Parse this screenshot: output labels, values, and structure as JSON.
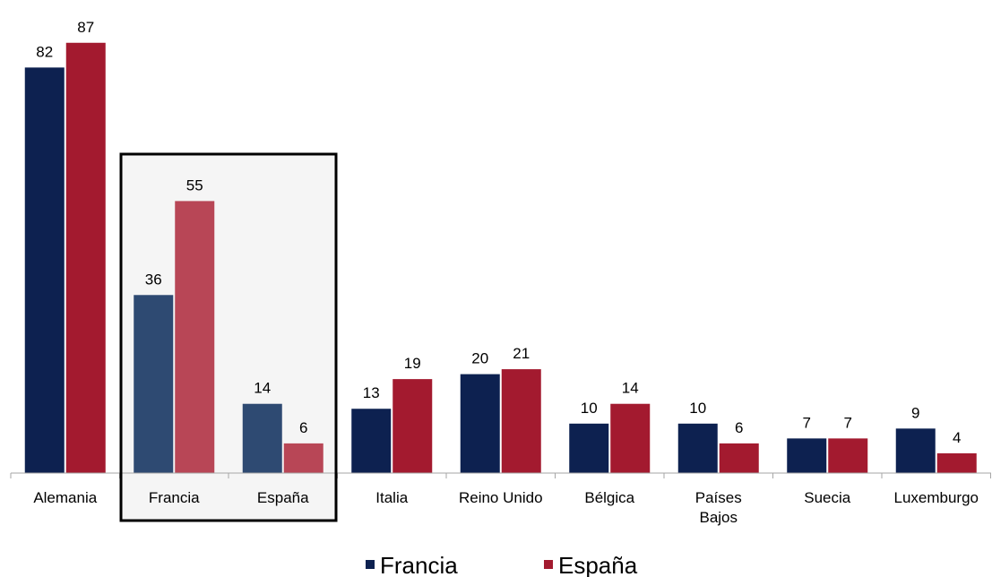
{
  "chart_data": {
    "type": "bar",
    "title": "",
    "xlabel": "",
    "ylabel": "",
    "ylim": [
      0,
      95
    ],
    "grid": false,
    "legend_position": "bottom-center",
    "categories": [
      "Alemania",
      "Francia",
      "España",
      "Italia",
      "Reino Unido",
      "Bélgica",
      "Países Bajos",
      "Suecia",
      "Luxemburgo"
    ],
    "category_lines": [
      [
        "Alemania"
      ],
      [
        "Francia"
      ],
      [
        "España"
      ],
      [
        "Italia"
      ],
      [
        "Reino Unido"
      ],
      [
        "Bélgica"
      ],
      [
        "Países",
        "Bajos"
      ],
      [
        "Suecia"
      ],
      [
        "Luxemburgo"
      ]
    ],
    "highlighted_categories": [
      "Francia",
      "España"
    ],
    "series": [
      {
        "name": "Francia",
        "values": [
          82,
          36,
          14,
          13,
          20,
          10,
          10,
          7,
          9
        ],
        "color": "#0d2150",
        "highlight_color": "#2e4a72"
      },
      {
        "name": "España",
        "values": [
          87,
          55,
          6,
          19,
          21,
          14,
          6,
          7,
          4
        ],
        "color": "#a31a2f",
        "highlight_color": "#b84656"
      }
    ]
  }
}
